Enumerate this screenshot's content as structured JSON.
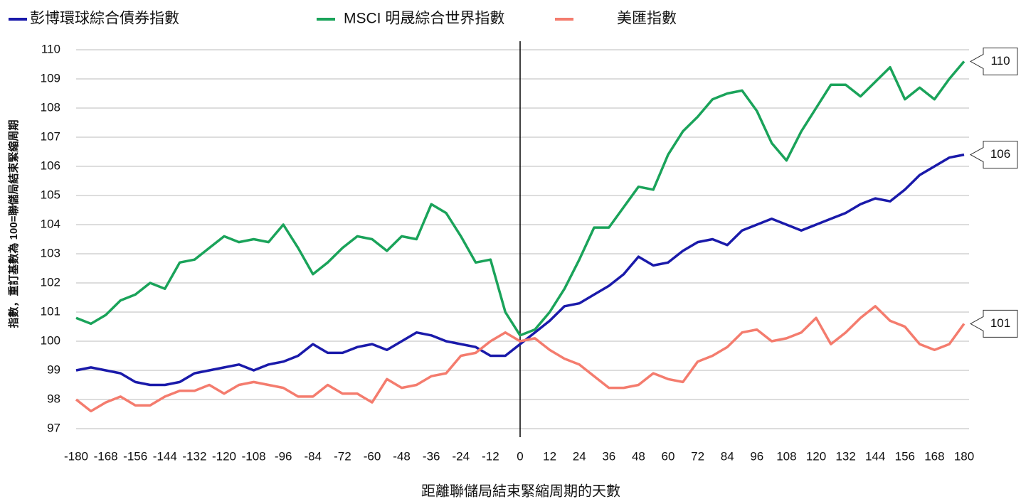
{
  "chart_data": {
    "type": "line",
    "y_label": "指數，重訂基數為 100=聯儲局結束緊縮周期",
    "x_label": "距離聯儲局結束緊縮周期的天數",
    "x": [
      -180,
      -174,
      -168,
      -162,
      -156,
      -150,
      -144,
      -138,
      -132,
      -126,
      -120,
      -114,
      -108,
      -102,
      -96,
      -90,
      -84,
      -78,
      -72,
      -66,
      -60,
      -54,
      -48,
      -42,
      -36,
      -30,
      -24,
      -18,
      -12,
      -6,
      0,
      6,
      12,
      18,
      24,
      30,
      36,
      42,
      48,
      54,
      60,
      66,
      72,
      78,
      84,
      90,
      96,
      102,
      108,
      114,
      120,
      126,
      132,
      138,
      144,
      150,
      156,
      162,
      168,
      174,
      180
    ],
    "series": [
      {
        "name": "彭博環球綜合債券指數",
        "color": "#1a1aaa",
        "end_label": "106",
        "values": [
          99.0,
          99.1,
          99.0,
          98.9,
          98.6,
          98.5,
          98.5,
          98.6,
          98.9,
          99.0,
          99.1,
          99.2,
          99.0,
          99.2,
          99.3,
          99.5,
          99.9,
          99.6,
          99.6,
          99.8,
          99.9,
          99.7,
          100.0,
          100.3,
          100.2,
          100.0,
          99.9,
          99.8,
          99.5,
          99.5,
          99.9,
          100.3,
          100.7,
          101.2,
          101.3,
          101.6,
          101.9,
          102.3,
          102.9,
          102.6,
          102.7,
          103.1,
          103.4,
          103.5,
          103.3,
          103.8,
          104.0,
          104.2,
          104.0,
          103.8,
          104.0,
          104.2,
          104.4,
          104.7,
          104.9,
          104.8,
          105.2,
          105.7,
          106.0,
          106.3,
          106.4
        ]
      },
      {
        "name": "MSCI 明晟綜合世界指數",
        "color": "#1aa35a",
        "end_label": "110",
        "values": [
          100.8,
          100.6,
          100.9,
          101.4,
          101.6,
          102.0,
          101.8,
          102.7,
          102.8,
          103.2,
          103.6,
          103.4,
          103.5,
          103.4,
          104.0,
          103.2,
          102.3,
          102.7,
          103.2,
          103.6,
          103.5,
          103.1,
          103.6,
          103.5,
          104.7,
          104.4,
          103.6,
          102.7,
          102.8,
          101.0,
          100.2,
          100.4,
          101.0,
          101.8,
          102.8,
          103.9,
          103.9,
          104.6,
          105.3,
          105.2,
          106.4,
          107.2,
          107.7,
          108.3,
          108.5,
          108.6,
          107.9,
          106.8,
          106.2,
          107.2,
          108.0,
          108.8,
          108.8,
          108.4,
          108.9,
          109.4,
          108.3,
          108.7,
          108.3,
          109.0,
          109.6
        ]
      },
      {
        "name": "美匯指數",
        "color": "#f47c6e",
        "end_label": "101",
        "values": [
          98.0,
          97.6,
          97.9,
          98.1,
          97.8,
          97.8,
          98.1,
          98.3,
          98.3,
          98.5,
          98.2,
          98.5,
          98.6,
          98.5,
          98.4,
          98.1,
          98.1,
          98.5,
          98.2,
          98.2,
          97.9,
          98.7,
          98.4,
          98.5,
          98.8,
          98.9,
          99.5,
          99.6,
          100.0,
          100.3,
          100.0,
          100.1,
          99.7,
          99.4,
          99.2,
          98.8,
          98.4,
          98.4,
          98.5,
          98.9,
          98.7,
          98.6,
          99.3,
          99.5,
          99.8,
          100.3,
          100.4,
          100.0,
          100.1,
          100.3,
          100.8,
          99.9,
          100.3,
          100.8,
          101.2,
          100.7,
          100.5,
          99.9,
          99.7,
          99.9,
          100.6
        ]
      }
    ],
    "xlim": [
      -180,
      180
    ],
    "ylim": [
      97,
      110
    ],
    "xticks": [
      -180,
      -168,
      -156,
      -144,
      -132,
      -120,
      -108,
      -96,
      -84,
      -72,
      -60,
      -48,
      -36,
      -24,
      -12,
      0,
      12,
      24,
      36,
      48,
      60,
      72,
      84,
      96,
      108,
      120,
      132,
      144,
      156,
      168,
      180
    ],
    "yticks": [
      97,
      98,
      99,
      100,
      101,
      102,
      103,
      104,
      105,
      106,
      107,
      108,
      109,
      110
    ],
    "grid": true,
    "vline": 0,
    "legend": "top"
  }
}
